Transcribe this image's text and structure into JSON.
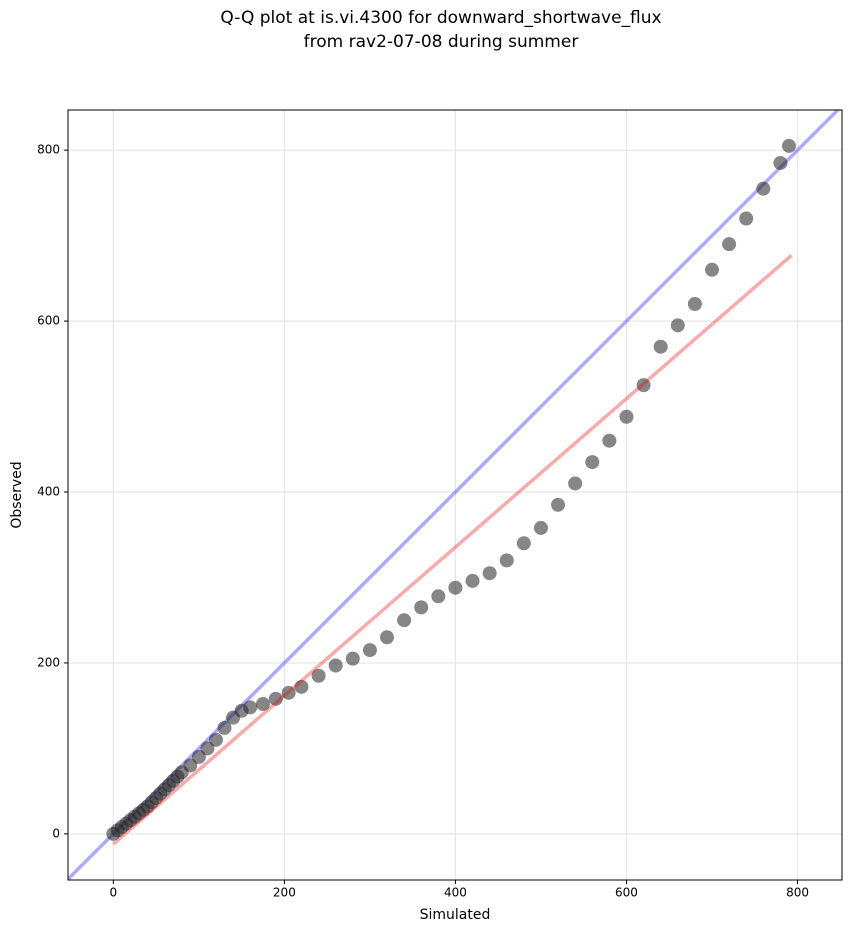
{
  "chart_data": {
    "type": "scatter",
    "title": [
      "Q-Q plot at is.vi.4300 for downward_shortwave_flux",
      "from rav2-07-08 during summer"
    ],
    "x_label": "Simulated",
    "y_label": "Observed",
    "xlim": [
      -53,
      852
    ],
    "ylim": [
      -54,
      847
    ],
    "xticks": [
      0,
      200,
      400,
      600,
      800
    ],
    "yticks": [
      0,
      200,
      400,
      600,
      800
    ],
    "grid": true,
    "color": "#222222",
    "x": [
      0,
      5,
      10,
      15,
      20,
      25,
      30,
      35,
      40,
      45,
      50,
      55,
      60,
      65,
      70,
      75,
      80,
      90,
      100,
      110,
      120,
      130,
      140,
      150,
      160,
      175,
      190,
      205,
      220,
      240,
      260,
      280,
      300,
      320,
      340,
      360,
      380,
      400,
      420,
      440,
      460,
      480,
      500,
      520,
      540,
      560,
      580,
      600,
      620,
      640,
      660,
      680,
      700,
      720,
      740,
      760,
      780,
      790
    ],
    "values": [
      0,
      4,
      8,
      12,
      16,
      20,
      24,
      28,
      32,
      37,
      42,
      47,
      52,
      57,
      62,
      67,
      72,
      80,
      90,
      100,
      110,
      124,
      136,
      144,
      148,
      152,
      158,
      165,
      172,
      185,
      197,
      205,
      215,
      230,
      250,
      265,
      278,
      288,
      296,
      305,
      320,
      340,
      358,
      385,
      410,
      435,
      460,
      488,
      525,
      570,
      595,
      620,
      660,
      690,
      720,
      755,
      785,
      805
    ],
    "lines": [
      {
        "color": "#0000ee",
        "x": [
          -60,
          860
        ],
        "values": [
          -60,
          860
        ]
      },
      {
        "color": "#ee0000",
        "x": [
          0,
          793
        ],
        "values": [
          -12,
          677
        ]
      }
    ]
  }
}
